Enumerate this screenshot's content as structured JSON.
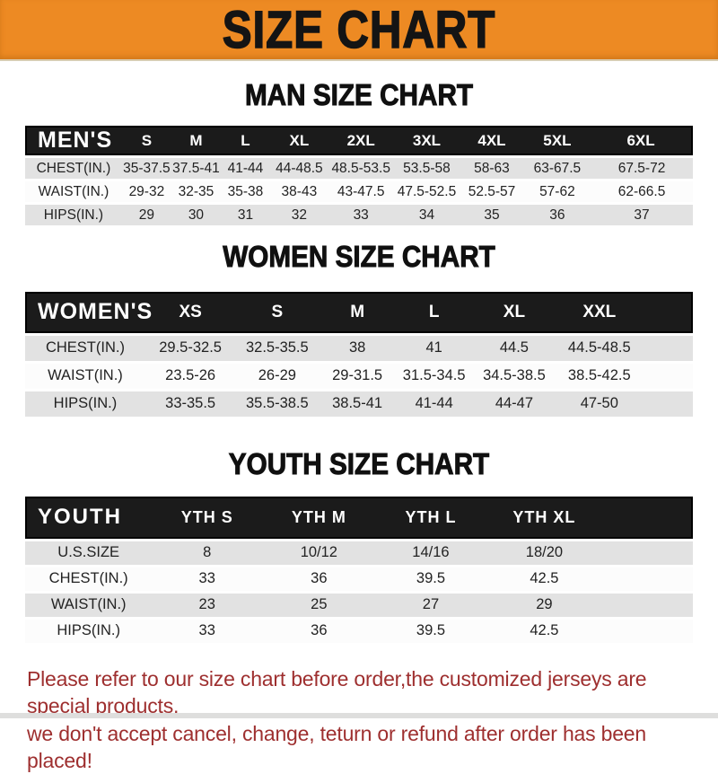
{
  "banner": {
    "title": "SIZE CHART"
  },
  "chart_data": [
    {
      "type": "table",
      "title": "MAN SIZE CHART",
      "header_label": "MEN'S",
      "columns": [
        "S",
        "M",
        "L",
        "XL",
        "2XL",
        "3XL",
        "4XL",
        "5XL",
        "6XL"
      ],
      "rows": [
        {
          "label": "CHEST(IN.)",
          "values": [
            "35-37.5",
            "37.5-41",
            "41-44",
            "44-48.5",
            "48.5-53.5",
            "53.5-58",
            "58-63",
            "63-67.5",
            "67.5-72"
          ]
        },
        {
          "label": "WAIST(IN.)",
          "values": [
            "29-32",
            "32-35",
            "35-38",
            "38-43",
            "43-47.5",
            "47.5-52.5",
            "52.5-57",
            "57-62",
            "62-66.5"
          ]
        },
        {
          "label": "HIPS(IN.)",
          "values": [
            "29",
            "30",
            "31",
            "32",
            "33",
            "34",
            "35",
            "36",
            "37"
          ]
        }
      ]
    },
    {
      "type": "table",
      "title": "WOMEN SIZE CHART",
      "header_label": "WOMEN'S",
      "columns": [
        "XS",
        "S",
        "M",
        "L",
        "XL",
        "XXL"
      ],
      "rows": [
        {
          "label": "CHEST(IN.)",
          "values": [
            "29.5-32.5",
            "32.5-35.5",
            "38",
            "41",
            "44.5",
            "44.5-48.5"
          ]
        },
        {
          "label": "WAIST(IN.)",
          "values": [
            "23.5-26",
            "26-29",
            "29-31.5",
            "31.5-34.5",
            "34.5-38.5",
            "38.5-42.5"
          ]
        },
        {
          "label": "HIPS(IN.)",
          "values": [
            "33-35.5",
            "35.5-38.5",
            "38.5-41",
            "41-44",
            "44-47",
            "47-50"
          ]
        }
      ]
    },
    {
      "type": "table",
      "title": "YOUTH SIZE CHART",
      "header_label": "YOUTH",
      "columns": [
        "YTH S",
        "YTH M",
        "YTH L",
        "YTH XL"
      ],
      "rows": [
        {
          "label": "U.S.SIZE",
          "values": [
            "8",
            "10/12",
            "14/16",
            "18/20"
          ]
        },
        {
          "label": "CHEST(IN.)",
          "values": [
            "33",
            "36",
            "39.5",
            "42.5"
          ]
        },
        {
          "label": "WAIST(IN.)",
          "values": [
            "23",
            "25",
            "27",
            "29"
          ]
        },
        {
          "label": "HIPS(IN.)",
          "values": [
            "33",
            "36",
            "39.5",
            "42.5"
          ]
        }
      ]
    }
  ],
  "footer": {
    "line1": "Please refer to our size chart before order,the customized jerseys are special products,",
    "line2": "we don't accept cancel, change, teturn or refund after order has been placed!"
  },
  "colors": {
    "banner_bg": "#ED8A23",
    "header_bar": "#1B1B1B",
    "row_gray": "#E2E2E2",
    "row_white": "#FCFCFC",
    "footer_text": "#9E2F2F",
    "title_text": "#141414"
  }
}
